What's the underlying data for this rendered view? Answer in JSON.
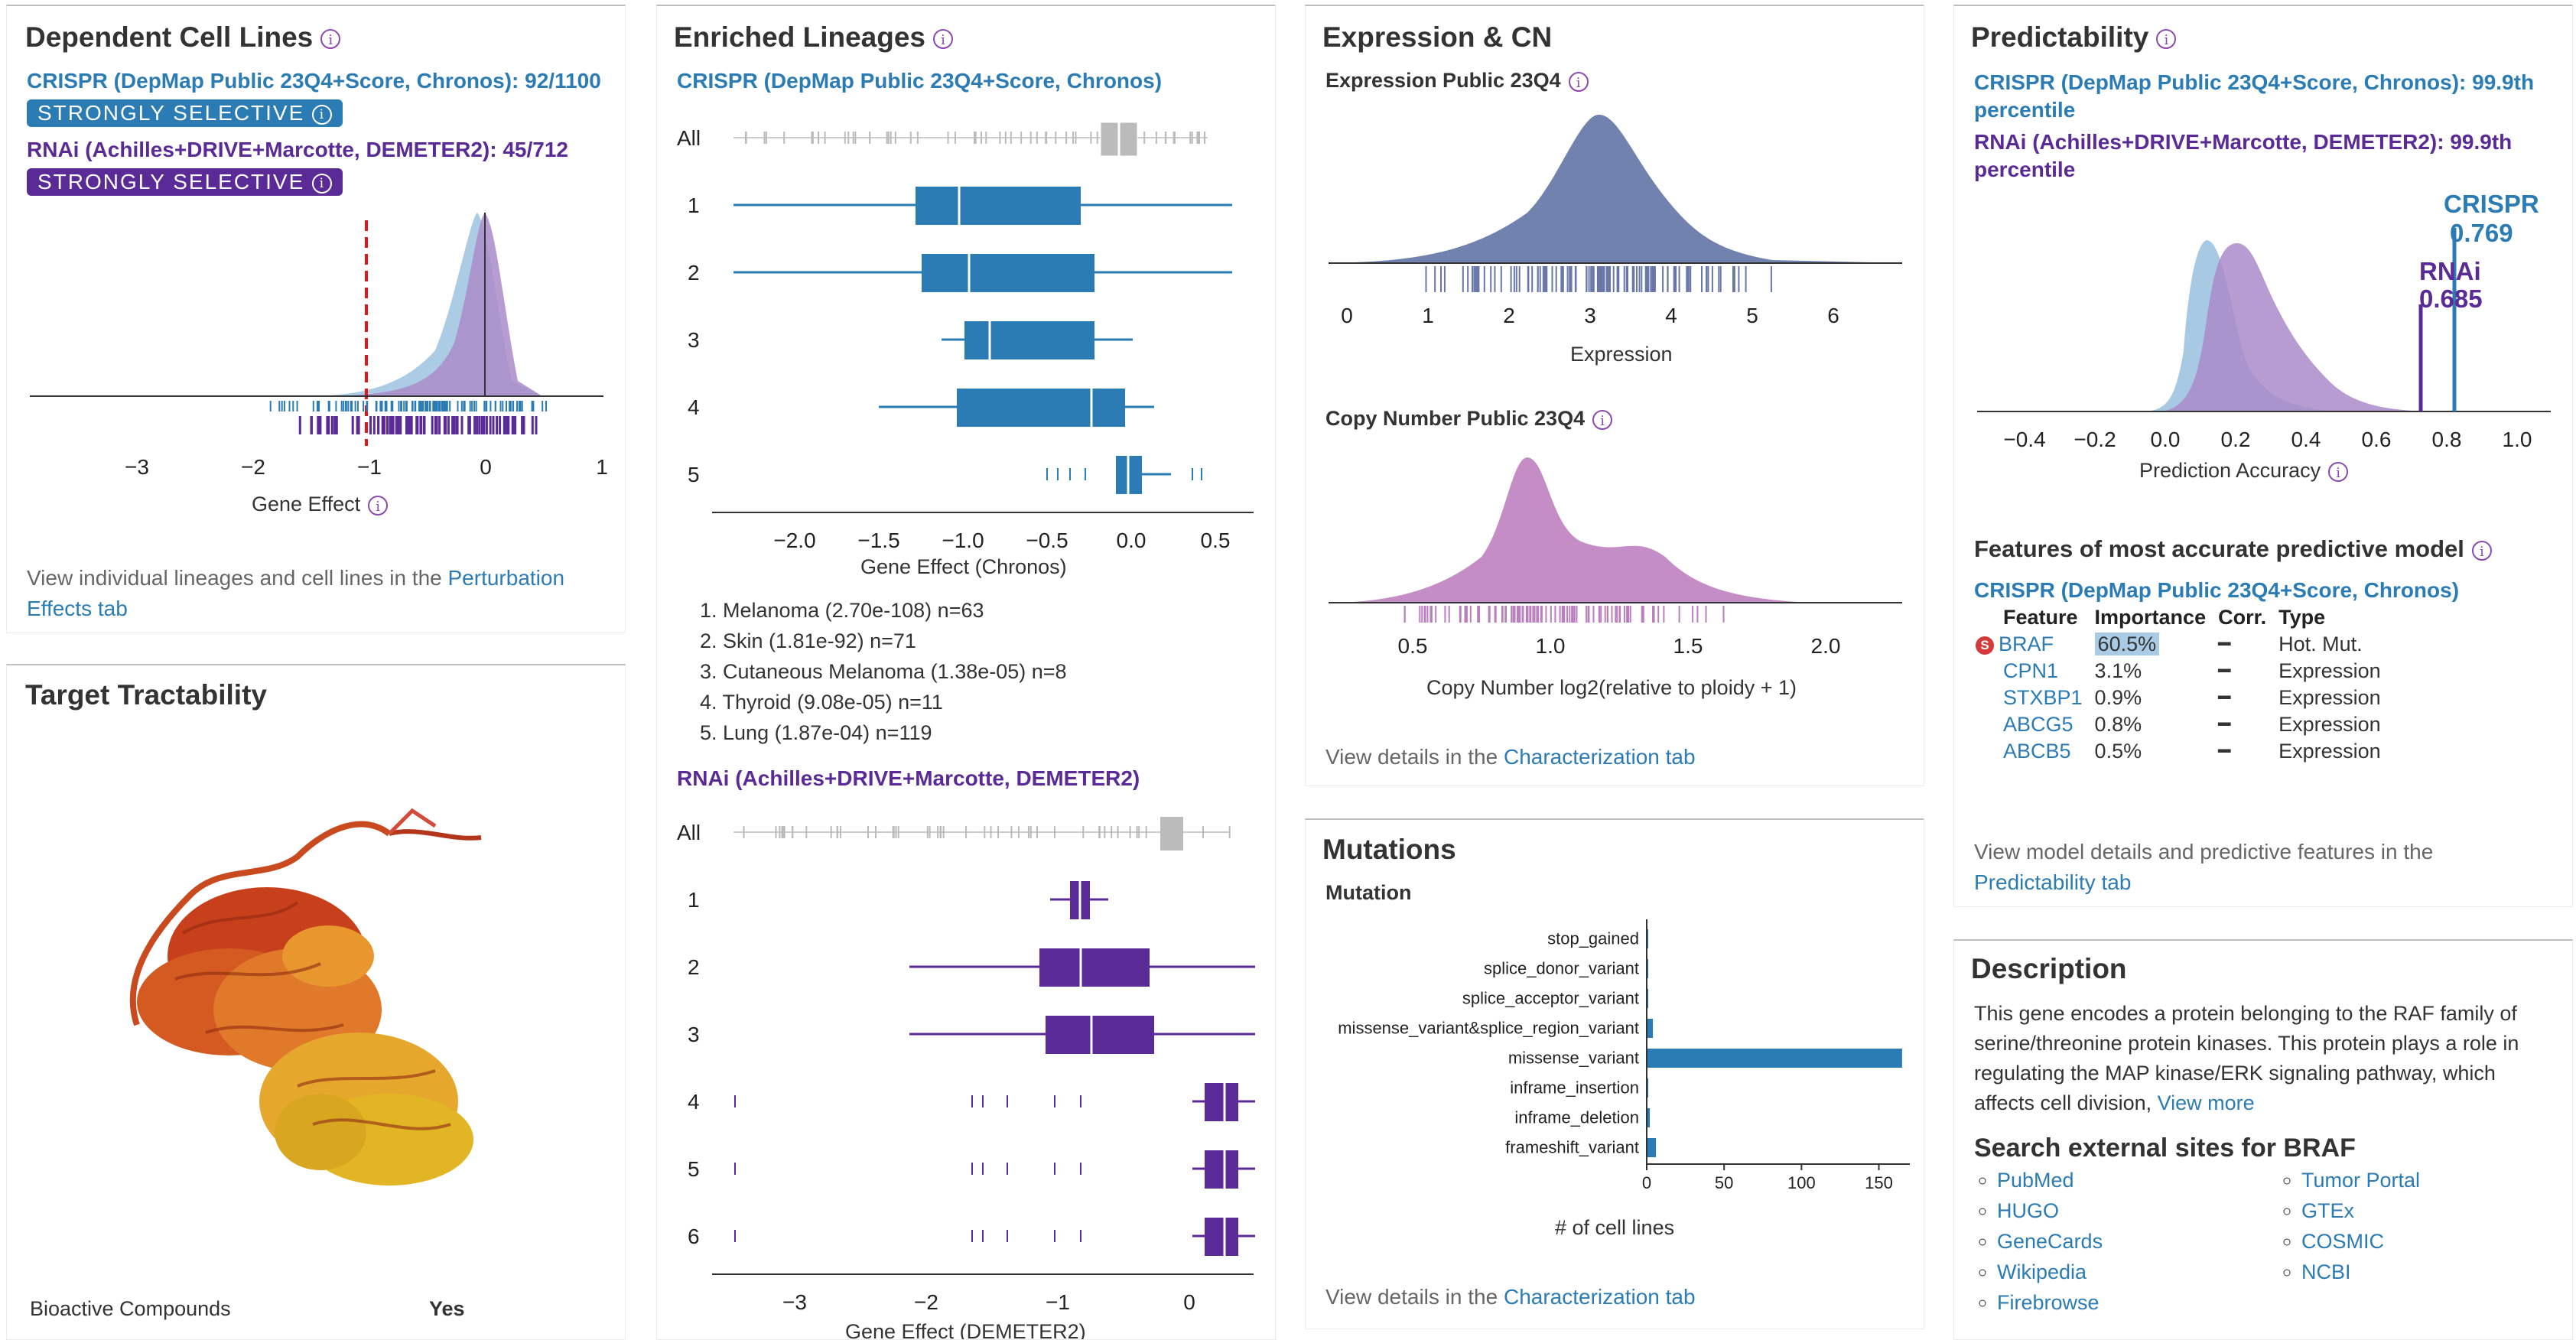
{
  "dependent": {
    "title": "Dependent Cell Lines",
    "crispr_label": "CRISPR (DepMap Public 23Q4+Score, Chronos): 92/1100",
    "crispr_badge": "STRONGLY SELECTIVE",
    "rnai_label": "RNAi (Achilles+DRIVE+Marcotte, DEMETER2): 45/712",
    "rnai_badge": "STRONGLY SELECTIVE",
    "x_ticks": [
      "−3",
      "−2",
      "−1",
      "0",
      "1"
    ],
    "xlabel": "Gene Effect",
    "footer_text": "View individual lineages and cell lines in the ",
    "footer_link": "Perturbation Effects tab"
  },
  "tractability": {
    "title": "Target Tractability",
    "rows": [
      {
        "label": "Bioactive Compounds",
        "value": "Yes"
      }
    ]
  },
  "lineages": {
    "title": "Enriched Lineages",
    "crispr_label": "CRISPR (DepMap Public 23Q4+Score, Chronos)",
    "crispr_rows": [
      "All",
      "1",
      "2",
      "3",
      "4",
      "5"
    ],
    "crispr_ticks": [
      "−2.0",
      "−1.5",
      "−1.0",
      "−0.5",
      "0.0",
      "0.5"
    ],
    "crispr_xlabel": "Gene Effect (Chronos)",
    "list": [
      "1. Melanoma (2.70e-108) n=63",
      "2. Skin (1.81e-92) n=71",
      "3. Cutaneous Melanoma (1.38e-05) n=8",
      "4. Thyroid (9.08e-05) n=11",
      "5. Lung (1.87e-04) n=119"
    ],
    "rnai_label": "RNAi (Achilles+DRIVE+Marcotte, DEMETER2)",
    "rnai_rows": [
      "All",
      "1",
      "2",
      "3",
      "4",
      "5",
      "6"
    ],
    "rnai_ticks": [
      "−3",
      "−2",
      "−1",
      "0"
    ],
    "rnai_xlabel": "Gene Effect (DEMETER2)"
  },
  "expression": {
    "title": "Expression & CN",
    "expr_label": "Expression Public 23Q4",
    "expr_ticks": [
      "0",
      "1",
      "2",
      "3",
      "4",
      "5",
      "6"
    ],
    "expr_xlabel": "Expression",
    "cn_label": "Copy Number Public 23Q4",
    "cn_ticks": [
      "0.5",
      "1.0",
      "1.5",
      "2.0"
    ],
    "cn_xlabel": "Copy Number log2(relative to ploidy + 1)",
    "footer_text": "View details in the ",
    "footer_link": "Characterization tab"
  },
  "mutations": {
    "title": "Mutations",
    "subtitle": "Mutation",
    "xlabel": "# of cell lines",
    "footer_text": "View details in the ",
    "footer_link": "Characterization tab"
  },
  "chart_data": {
    "type": "bar",
    "orientation": "horizontal",
    "categories": [
      "stop_gained",
      "splice_donor_variant",
      "splice_acceptor_variant",
      "missense_variant&splice_region_variant",
      "missense_variant",
      "inframe_insertion",
      "inframe_deletion",
      "frameshift_variant"
    ],
    "values": [
      1,
      1,
      1,
      4,
      165,
      1,
      2,
      6
    ],
    "xlabel": "# of cell lines",
    "x_ticks": [
      "0",
      "50",
      "100",
      "150"
    ],
    "xlim": [
      0,
      170
    ],
    "color": "#2b7bb5"
  },
  "predictability": {
    "title": "Predictability",
    "crispr_label_1": "CRISPR (DepMap Public 23Q4+Score, Chronos): 99.9th",
    "crispr_label_2": "percentile",
    "rnai_label_1": "RNAi (Achilles+DRIVE+Marcotte, DEMETER2): 99.9th",
    "rnai_label_2": "percentile",
    "crispr_marker": "CRISPR",
    "crispr_value": "0.769",
    "rnai_marker": "RNAi",
    "rnai_value": "0.685",
    "ticks": [
      "−0.4",
      "−0.2",
      "0.0",
      "0.2",
      "0.4",
      "0.6",
      "0.8",
      "1.0"
    ],
    "xlabel": "Prediction Accuracy",
    "features_title": "Features of most accurate predictive model",
    "features_sub": "CRISPR (DepMap Public 23Q4+Score, Chronos)",
    "headers": [
      "Feature",
      "Importance",
      "Corr.",
      "Type"
    ],
    "features": [
      {
        "name": "BRAF",
        "importance": "60.5%",
        "corr": "━",
        "type": "Hot. Mut."
      },
      {
        "name": "CPN1",
        "importance": "3.1%",
        "corr": "━",
        "type": "Expression"
      },
      {
        "name": "STXBP1",
        "importance": "0.9%",
        "corr": "━",
        "type": "Expression"
      },
      {
        "name": "ABCG5",
        "importance": "0.8%",
        "corr": "━",
        "type": "Expression"
      },
      {
        "name": "ABCB5",
        "importance": "0.5%",
        "corr": "━",
        "type": "Expression"
      }
    ],
    "self_badge": "S",
    "footer_text": "View model details and predictive features in the",
    "footer_link": "Predictability tab"
  },
  "description": {
    "title": "Description",
    "text": "This gene encodes a protein belonging to the RAF family of serine/threonine protein kinases. This protein plays a role in regulating the MAP kinase/ERK signaling pathway, which affects cell division,",
    "more": "View more",
    "search_title": "Search external sites for BRAF",
    "links_left": [
      "PubMed",
      "HUGO",
      "GeneCards",
      "Wikipedia",
      "Firebrowse"
    ],
    "links_right": [
      "Tumor Portal",
      "GTEx",
      "COSMIC",
      "NCBI"
    ]
  },
  "colors": {
    "crispr": "#2b7bb5",
    "rnai": "#5a2a96",
    "light_crispr": "#9ec3e0",
    "light_rnai": "#a98bc9"
  }
}
